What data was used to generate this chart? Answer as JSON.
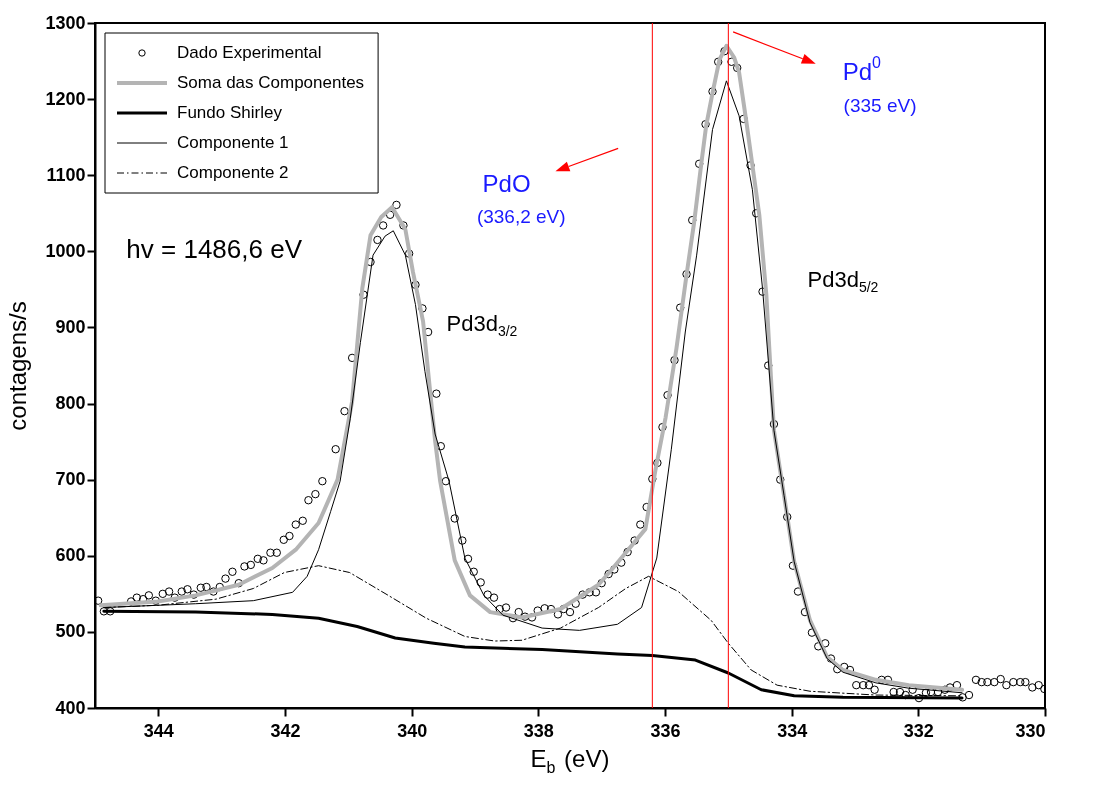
{
  "chart_data": {
    "type": "line",
    "xlabel": "E$_{b}$ (eV)",
    "ylabel": "contagens/s",
    "xlim": [
      345,
      330
    ],
    "ylim": [
      400,
      1300
    ],
    "xticks": [
      344,
      342,
      340,
      338,
      336,
      334,
      332,
      330
    ],
    "yticks": [
      400,
      500,
      600,
      700,
      800,
      900,
      1000,
      1100,
      1200,
      1300
    ],
    "legend": "top left",
    "ref_lines": [
      {
        "axis": "x",
        "value": 336.2,
        "color": "#ff0000"
      },
      {
        "axis": "x",
        "value": 335,
        "color": "#ff0000"
      }
    ],
    "annotations": [
      "hv = 1486,6 eV",
      "Pd3d$_{3/2}$",
      "Pd3d$_{5/2}$",
      "PdO",
      "(336,2 eV)",
      "Pd$^{0}$",
      "(335 eV)"
    ],
    "series": [
      {
        "name": "Dado Experimental",
        "type": "scatter",
        "marker": "circle",
        "color": "#000000",
        "x": [
          344.95,
          344.86,
          344.76,
          344.43,
          344.34,
          344.24,
          344.15,
          344.04,
          343.93,
          343.83,
          343.74,
          343.63,
          343.54,
          343.44,
          343.33,
          343.24,
          343.13,
          343.03,
          342.94,
          342.83,
          342.73,
          342.64,
          342.54,
          342.43,
          342.34,
          342.23,
          342.13,
          342.02,
          341.93,
          341.83,
          341.72,
          341.63,
          341.52,
          341.41,
          341.2,
          341.06,
          340.94,
          340.76,
          340.65,
          340.54,
          340.45,
          340.34,
          340.24,
          340.13,
          340.04,
          339.94,
          339.83,
          339.74,
          339.61,
          339.54,
          339.46,
          339.32,
          339.2,
          339.11,
          339.02,
          338.91,
          338.8,
          338.7,
          338.61,
          338.51,
          338.4,
          338.31,
          338.21,
          338.1,
          338.01,
          337.9,
          337.8,
          337.69,
          337.6,
          337.5,
          337.41,
          337.3,
          337.19,
          337.09,
          337.0,
          336.89,
          336.8,
          336.69,
          336.59,
          336.48,
          336.39,
          336.29,
          336.2,
          336.12,
          336.04,
          335.96,
          335.85,
          335.76,
          335.66,
          335.57,
          335.46,
          335.36,
          335.25,
          335.16,
          335.06,
          334.95,
          334.86,
          334.76,
          334.65,
          334.56,
          334.46,
          334.37,
          334.28,
          334.18,
          334.07,
          333.98,
          333.9,
          333.79,
          333.68,
          333.58,
          333.47,
          333.38,
          333.28,
          333.17,
          333.08,
          332.98,
          332.87,
          332.78,
          332.69,
          332.58,
          332.48,
          332.39,
          332.29,
          332.2,
          332.09,
          331.99,
          331.88,
          331.8,
          331.69,
          331.58,
          331.5,
          331.39,
          331.3,
          331.2,
          331.09,
          331.0,
          330.91,
          330.8,
          330.7,
          330.61,
          330.5,
          330.39,
          330.31,
          330.2,
          330.1,
          330.01
        ],
        "values": [
          541,
          527,
          527,
          540,
          545,
          543,
          548,
          541,
          550,
          553,
          545,
          553,
          556,
          549,
          558,
          559,
          553,
          559,
          570,
          579,
          564,
          586,
          588,
          596,
          594,
          604,
          604,
          621,
          626,
          641,
          646,
          673,
          681,
          698,
          740,
          790,
          860,
          943,
          986,
          1015,
          1034,
          1048,
          1061,
          1034,
          997,
          956,
          925,
          894,
          813,
          744,
          698,
          649,
          620,
          596,
          579,
          565,
          549,
          545,
          530,
          532,
          518,
          526,
          520,
          519,
          528,
          531,
          530,
          523,
          530,
          526,
          537,
          549,
          552,
          552,
          564,
          576,
          582,
          591,
          605,
          620,
          641,
          664,
          701,
          722,
          769,
          811,
          857,
          926,
          970,
          1041,
          1115,
          1167,
          1210,
          1249,
          1263,
          1249,
          1241,
          1174,
          1113,
          1050,
          947,
          850,
          773,
          700,
          651,
          587,
          553,
          526,
          499,
          481,
          485,
          465,
          451,
          454,
          450,
          430,
          430,
          430,
          424,
          437,
          437,
          421,
          421,
          417,
          424,
          413,
          420,
          421,
          421,
          424,
          427,
          430,
          414,
          417,
          437,
          434,
          434,
          434,
          438,
          430,
          434,
          434,
          434,
          427,
          430,
          425
        ]
      },
      {
        "name": "Soma das Componentes",
        "type": "line",
        "line_style": "solid",
        "color": "#b4b4b4",
        "x": [
          344.91,
          344.01,
          343.41,
          342.73,
          342.2,
          341.83,
          341.47,
          341.17,
          340.94,
          340.78,
          340.65,
          340.48,
          340.31,
          340.1,
          339.98,
          339.82,
          339.63,
          339.55,
          339.32,
          339.08,
          338.76,
          338.26,
          337.65,
          337.05,
          336.83,
          336.31,
          336.15,
          335.99,
          335.82,
          335.66,
          335.54,
          335.43,
          335.35,
          335.25,
          335.14,
          335.03,
          334.91,
          334.83,
          334.72,
          334.62,
          334.51,
          334.4,
          334.35,
          334.28,
          334.12,
          333.96,
          333.71,
          333.44,
          333.19,
          332.67,
          332.15,
          331.31
        ],
        "values": [
          535,
          540,
          548,
          562,
          584,
          608,
          643,
          700,
          803,
          951,
          1021,
          1045,
          1058,
          1029,
          973,
          908,
          751,
          698,
          594,
          548,
          526,
          519,
          530,
          562,
          583,
          635,
          713,
          782,
          872,
          969,
          1038,
          1113,
          1165,
          1208,
          1252,
          1270,
          1255,
          1235,
          1173,
          1113,
          1047,
          943,
          868,
          765,
          679,
          592,
          515,
          467,
          450,
          437,
          430,
          424
        ]
      },
      {
        "name": "Fundo Shirley",
        "type": "line",
        "line_style": "solid",
        "color": "#000000",
        "x": [
          344.86,
          343.41,
          342.2,
          341.47,
          340.86,
          340.26,
          339.65,
          339.16,
          337.94,
          336.75,
          336.2,
          335.52,
          335.0,
          334.48,
          333.96,
          333.19,
          331.31
        ],
        "values": [
          527,
          526,
          523,
          518,
          507,
          492,
          485,
          480,
          477,
          471,
          469,
          463,
          446,
          424,
          416,
          414,
          413
        ]
      },
      {
        "name": "Componente 1",
        "type": "line",
        "line_style": "solid",
        "color": "#000000",
        "x": [
          344.86,
          343.41,
          342.5,
          341.88,
          341.65,
          341.47,
          341.28,
          341.13,
          340.97,
          340.81,
          340.61,
          340.42,
          340.29,
          340.1,
          339.94,
          339.79,
          339.63,
          339.41,
          339.16,
          338.86,
          338.56,
          337.94,
          337.35,
          336.75,
          336.37,
          336.13,
          335.9,
          335.68,
          335.5,
          335.25,
          335.03,
          334.83,
          334.62,
          334.46,
          334.28,
          334.12,
          333.96,
          333.71,
          333.44,
          333.19,
          332.67,
          332.15,
          331.31
        ],
        "values": [
          532,
          537,
          541,
          552,
          573,
          608,
          658,
          698,
          780,
          880,
          995,
          1020,
          1027,
          995,
          930,
          842,
          760,
          698,
          597,
          548,
          522,
          505,
          502,
          510,
          532,
          597,
          740,
          894,
          995,
          1160,
          1224,
          1178,
          1081,
          951,
          765,
          679,
          592,
          512,
          465,
          447,
          433,
          426,
          420
        ]
      },
      {
        "name": "Componente 2",
        "type": "line",
        "line_style": "dashed",
        "color": "#000000",
        "x": [
          344.86,
          344.01,
          343.09,
          342.5,
          342.01,
          341.47,
          340.98,
          340.37,
          339.77,
          339.16,
          338.69,
          338.26,
          337.65,
          337.05,
          336.62,
          336.26,
          335.79,
          335.27,
          335.0,
          334.64,
          334.23,
          333.71,
          332.67,
          331.31
        ],
        "values": [
          532,
          535,
          543,
          557,
          578,
          587,
          578,
          548,
          518,
          494,
          488,
          489,
          505,
          532,
          557,
          573,
          553,
          515,
          485,
          450,
          430,
          422,
          417,
          416
        ]
      }
    ]
  }
}
